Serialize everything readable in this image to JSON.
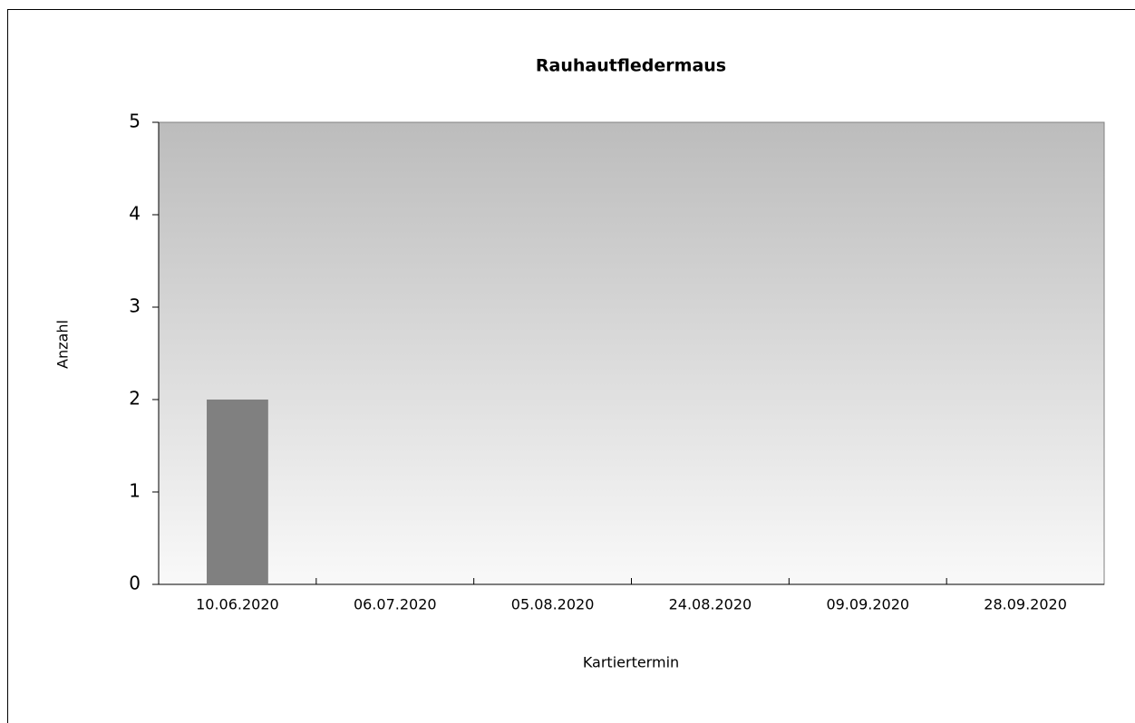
{
  "chart_data": {
    "type": "bar",
    "title": "Rauhautfledermaus",
    "x_label": "Kartiertermin",
    "y_label": "Anzahl",
    "categories": [
      "10.06.2020",
      "06.07.2020",
      "05.08.2020",
      "24.08.2020",
      "09.09.2020",
      "28.09.2020"
    ],
    "values": [
      2,
      0,
      0,
      0,
      0,
      0
    ],
    "color": "#808080",
    "ylim": [
      0,
      5
    ],
    "yticks": [
      0,
      1,
      2,
      3,
      4,
      5
    ],
    "grid": false
  }
}
